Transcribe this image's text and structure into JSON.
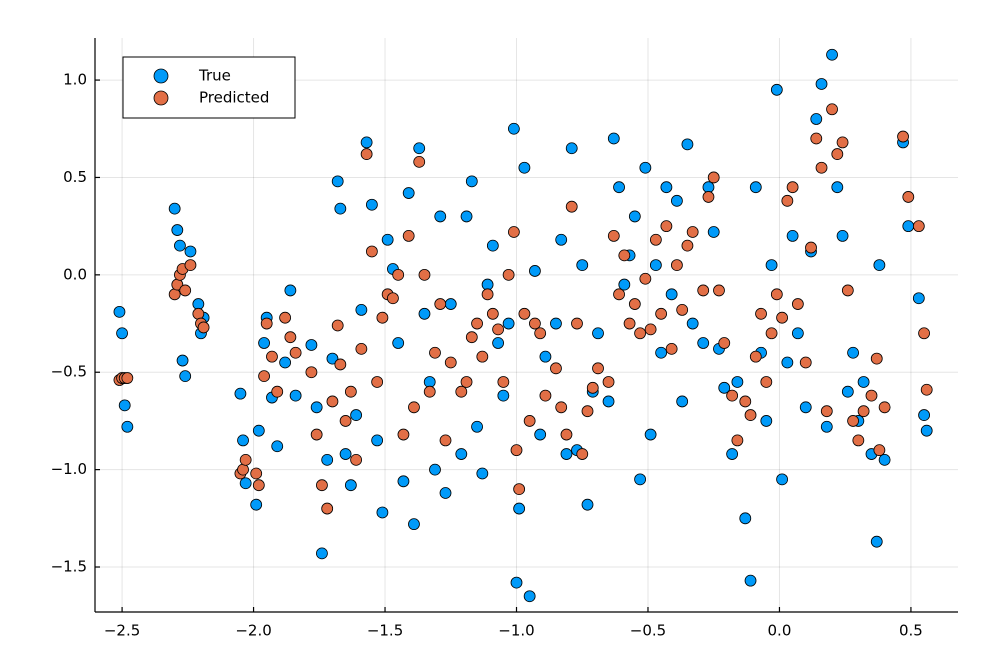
{
  "chart_data": {
    "type": "scatter",
    "x": [
      -2.51,
      -2.5,
      -2.49,
      -2.48,
      -2.3,
      -2.29,
      -2.28,
      -2.27,
      -2.26,
      -2.24,
      -2.21,
      -2.2,
      -2.19,
      -2.05,
      -2.04,
      -2.03,
      -1.99,
      -1.98,
      -1.96,
      -1.95,
      -1.93,
      -1.91,
      -1.88,
      -1.86,
      -1.84,
      -1.78,
      -1.76,
      -1.74,
      -1.72,
      -1.7,
      -1.68,
      -1.67,
      -1.65,
      -1.63,
      -1.61,
      -1.59,
      -1.57,
      -1.55,
      -1.53,
      -1.51,
      -1.49,
      -1.47,
      -1.45,
      -1.43,
      -1.41,
      -1.39,
      -1.37,
      -1.35,
      -1.33,
      -1.31,
      -1.29,
      -1.27,
      -1.25,
      -1.21,
      -1.19,
      -1.17,
      -1.15,
      -1.13,
      -1.11,
      -1.09,
      -1.07,
      -1.05,
      -1.03,
      -1.01,
      -1.0,
      -0.99,
      -0.97,
      -0.95,
      -0.93,
      -0.91,
      -0.89,
      -0.85,
      -0.83,
      -0.81,
      -0.79,
      -0.77,
      -0.75,
      -0.73,
      -0.71,
      -0.69,
      -0.65,
      -0.63,
      -0.61,
      -0.59,
      -0.57,
      -0.55,
      -0.53,
      -0.51,
      -0.49,
      -0.47,
      -0.45,
      -0.43,
      -0.41,
      -0.39,
      -0.37,
      -0.35,
      -0.33,
      -0.29,
      -0.27,
      -0.25,
      -0.23,
      -0.21,
      -0.18,
      -0.16,
      -0.13,
      -0.11,
      -0.09,
      -0.07,
      -0.05,
      -0.03,
      -0.01,
      0.01,
      0.03,
      0.05,
      0.07,
      0.1,
      0.12,
      0.14,
      0.16,
      0.18,
      0.2,
      0.22,
      0.24,
      0.26,
      0.28,
      0.3,
      0.32,
      0.35,
      0.37,
      0.38,
      0.4,
      0.47,
      0.49,
      0.53,
      0.55,
      0.56
    ],
    "series": [
      {
        "name": "True",
        "color": "#009af9",
        "values": [
          -0.19,
          -0.3,
          -0.67,
          -0.78,
          0.34,
          0.23,
          0.15,
          -0.44,
          -0.52,
          0.12,
          -0.15,
          -0.3,
          -0.22,
          -0.61,
          -0.85,
          -1.07,
          -1.18,
          -0.8,
          -0.35,
          -0.22,
          -0.63,
          -0.88,
          -0.45,
          -0.08,
          -0.62,
          -0.36,
          -0.68,
          -1.43,
          -0.95,
          -0.43,
          0.48,
          0.34,
          -0.92,
          -1.08,
          -0.72,
          -0.18,
          0.68,
          0.36,
          -0.85,
          -1.22,
          0.18,
          0.03,
          -0.35,
          -1.06,
          0.42,
          -1.28,
          0.65,
          -0.2,
          -0.55,
          -1.0,
          0.3,
          -1.12,
          -0.15,
          -0.92,
          0.3,
          0.48,
          -0.78,
          -1.02,
          -0.05,
          0.15,
          -0.35,
          -0.62,
          -0.25,
          0.75,
          -1.58,
          -1.2,
          0.55,
          -1.65,
          0.02,
          -0.82,
          -0.42,
          -0.25,
          0.18,
          -0.92,
          0.65,
          -0.9,
          0.05,
          -1.18,
          -0.6,
          -0.3,
          -0.65,
          0.7,
          0.45,
          -0.05,
          0.1,
          0.3,
          -1.05,
          0.55,
          -0.82,
          0.05,
          -0.4,
          0.45,
          -0.1,
          0.38,
          -0.65,
          0.67,
          -0.25,
          -0.35,
          0.45,
          0.22,
          -0.38,
          -0.58,
          -0.92,
          -0.55,
          -1.25,
          -1.57,
          0.45,
          -0.4,
          -0.75,
          0.05,
          0.95,
          -1.05,
          -0.45,
          0.2,
          -0.3,
          -0.68,
          0.12,
          0.8,
          0.98,
          -0.78,
          1.13,
          0.45,
          0.2,
          -0.6,
          -0.4,
          -0.75,
          -0.55,
          -0.92,
          -1.37,
          0.05,
          -0.95,
          0.68,
          0.25,
          -0.12,
          -0.72,
          -0.8
        ]
      },
      {
        "name": "Predicted",
        "color": "#e26f46",
        "values": [
          -0.54,
          -0.53,
          -0.53,
          -0.53,
          -0.1,
          -0.05,
          0.0,
          0.03,
          -0.08,
          0.05,
          -0.2,
          -0.25,
          -0.27,
          -1.02,
          -1.0,
          -0.95,
          -1.02,
          -1.08,
          -0.52,
          -0.25,
          -0.42,
          -0.6,
          -0.22,
          -0.32,
          -0.4,
          -0.5,
          -0.82,
          -1.08,
          -1.2,
          -0.65,
          -0.26,
          -0.46,
          -0.75,
          -0.6,
          -0.95,
          -0.38,
          0.62,
          0.12,
          -0.55,
          -0.22,
          -0.1,
          -0.12,
          0.0,
          -0.82,
          0.2,
          -0.68,
          0.58,
          0.0,
          -0.6,
          -0.4,
          -0.15,
          -0.85,
          -0.45,
          -0.6,
          -0.55,
          -0.32,
          -0.25,
          -0.42,
          -0.1,
          -0.2,
          -0.28,
          -0.55,
          0.0,
          0.22,
          -0.9,
          -1.1,
          -0.2,
          -0.75,
          -0.25,
          -0.3,
          -0.62,
          -0.48,
          -0.68,
          -0.82,
          0.35,
          -0.25,
          -0.92,
          -0.7,
          -0.58,
          -0.48,
          -0.55,
          0.2,
          -0.1,
          0.1,
          -0.25,
          -0.15,
          -0.3,
          -0.02,
          -0.28,
          0.18,
          -0.2,
          0.25,
          -0.38,
          0.05,
          -0.18,
          0.15,
          0.22,
          -0.08,
          0.4,
          0.5,
          -0.08,
          -0.35,
          -0.62,
          -0.85,
          -0.65,
          -0.72,
          -0.42,
          -0.2,
          -0.55,
          -0.3,
          -0.1,
          -0.22,
          0.38,
          0.45,
          -0.15,
          -0.45,
          0.14,
          0.7,
          0.55,
          -0.7,
          0.85,
          0.62,
          0.68,
          -0.08,
          -0.75,
          -0.85,
          -0.7,
          -0.62,
          -0.43,
          -0.9,
          -0.68,
          0.71,
          0.4,
          0.25,
          -0.3,
          -0.59
        ]
      }
    ],
    "xlim": [
      -2.603,
      0.679
    ],
    "ylim": [
      -1.731,
      1.216
    ],
    "xticks": [
      {
        "value": -2.5,
        "label": "−2.5"
      },
      {
        "value": -2.0,
        "label": "−2.0"
      },
      {
        "value": -1.5,
        "label": "−1.5"
      },
      {
        "value": -1.0,
        "label": "−1.0"
      },
      {
        "value": -0.5,
        "label": "−0.5"
      },
      {
        "value": 0,
        "label": "0.0"
      },
      0.5
    ],
    "yticks": [
      {
        "value": -1.5,
        "label": "−1.5"
      },
      {
        "value": -1.0,
        "label": "−1.0"
      },
      {
        "value": -0.5,
        "label": "−0.5"
      },
      {
        "value": 0,
        "label": "0.0"
      },
      0.5,
      {
        "value": 1.0,
        "label": "1.0"
      }
    ],
    "grid": true,
    "legend": "top-left"
  }
}
